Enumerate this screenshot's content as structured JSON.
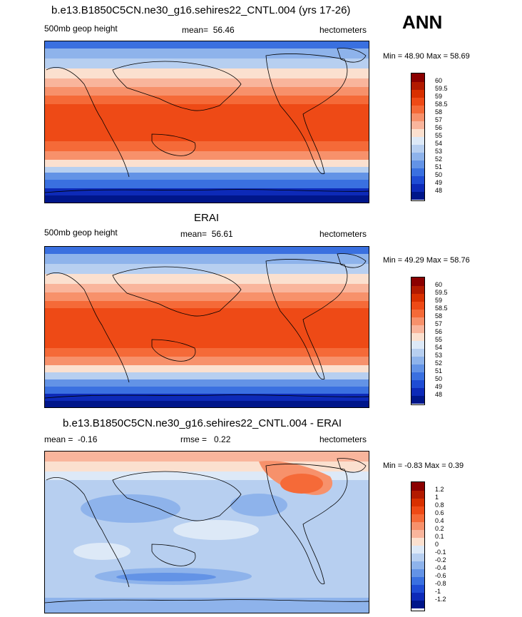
{
  "season": "ANN",
  "units": "hectometers",
  "panels": [
    {
      "title": "b.e13.B1850C5CN.ne30_g16.sehires22_CNTL.004 (yrs 17-26)",
      "variable": "500mb geop height",
      "mean_label": "mean=",
      "mean": "56.46",
      "units": "hectometers",
      "minmax": "Min =  48.90 Max =  58.69",
      "levels": [
        "60",
        "59.5",
        "59",
        "58.5",
        "58",
        "57",
        "56",
        "55",
        "54",
        "53",
        "52",
        "51",
        "50",
        "49",
        "48"
      ]
    },
    {
      "title": "ERAI",
      "variable": "500mb geop height",
      "mean_label": "mean=",
      "mean": "56.61",
      "units": "hectometers",
      "minmax": "Min =  49.29 Max =  58.76",
      "levels": [
        "60",
        "59.5",
        "59",
        "58.5",
        "58",
        "57",
        "56",
        "55",
        "54",
        "53",
        "52",
        "51",
        "50",
        "49",
        "48"
      ]
    },
    {
      "title": "b.e13.B1850C5CN.ne30_g16.sehires22_CNTL.004 - ERAI",
      "variable": "mean =",
      "mean": "-0.16",
      "rmse_label": "rmse =",
      "rmse": "0.22",
      "units": "hectometers",
      "minmax": "Min =  -0.83 Max =   0.39",
      "levels": [
        "1.2",
        "1",
        "0.8",
        "0.6",
        "0.4",
        "0.2",
        "0.1",
        "0",
        "-0.1",
        "-0.2",
        "-0.4",
        "-0.6",
        "-0.8",
        "-1",
        "-1.2"
      ]
    }
  ],
  "colors": {
    "scale": [
      "#8b0000",
      "#b21a00",
      "#d83000",
      "#ee4a16",
      "#f56a38",
      "#f7916b",
      "#f9b59c",
      "#fbe0cf",
      "#dde9f7",
      "#b7cff0",
      "#8eb3eb",
      "#6393e6",
      "#3a70e0",
      "#1f4cd4",
      "#0d2ab8",
      "#00168a"
    ]
  }
}
